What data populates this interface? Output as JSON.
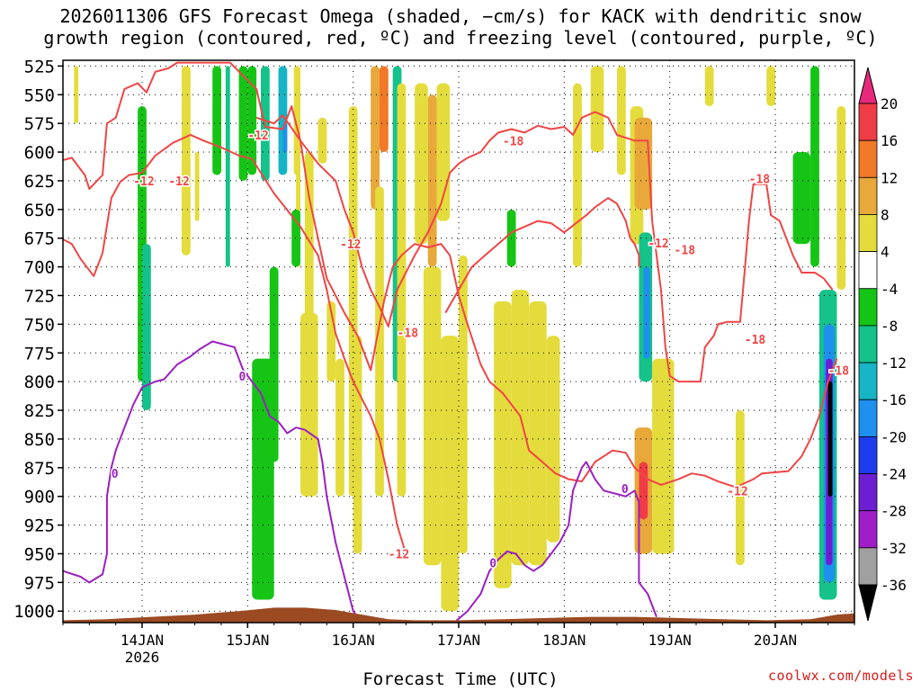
{
  "title": {
    "line1": "2026011306 GFS Forecast Omega (shaded, −cm/s) for KACK with dendritic snow",
    "line2": "growth region (contoured, red, ºC) and freezing level (contoured, purple, ºC)"
  },
  "credit": "coolwx.com/models",
  "colors": {
    "snow_growth_contour": "#f04545",
    "freezing_contour": "#9b1fc1",
    "ground": "#9b4a22"
  },
  "chart_data": {
    "type": "heatmap",
    "xlabel": "Forecast Time (UTC)",
    "ylabel": "",
    "x_ticks": [
      {
        "label": "14JAN",
        "sublabel": "2026",
        "hour": 18
      },
      {
        "label": "15JAN",
        "sublabel": "",
        "hour": 42
      },
      {
        "label": "16JAN",
        "sublabel": "",
        "hour": 66
      },
      {
        "label": "17JAN",
        "sublabel": "",
        "hour": 90
      },
      {
        "label": "18JAN",
        "sublabel": "",
        "hour": 114
      },
      {
        "label": "19JAN",
        "sublabel": "",
        "hour": 138
      },
      {
        "label": "20JAN",
        "sublabel": "",
        "hour": 162
      }
    ],
    "xlim_hours": [
      0,
      180
    ],
    "y_levels_hpa": [
      525,
      550,
      575,
      600,
      625,
      650,
      675,
      700,
      725,
      750,
      775,
      800,
      825,
      850,
      875,
      900,
      925,
      950,
      975,
      1000
    ],
    "ylim_hpa": [
      520,
      1010
    ],
    "grid": true,
    "colorbar": {
      "labels": [
        "20",
        "16",
        "12",
        "8",
        "4",
        "-4",
        "-8",
        "-12",
        "-16",
        "-20",
        "-24",
        "-28",
        "-32",
        "-36"
      ],
      "bins": [
        {
          "range": "16 to 20",
          "color": "#f03c46"
        },
        {
          "range": "12 to 16",
          "color": "#f07a28"
        },
        {
          "range": "8 to 12",
          "color": "#e8a83a"
        },
        {
          "range": "4 to 8",
          "color": "#e4dc3c"
        },
        {
          "range": "-4 to 4",
          "color": "#ffffff"
        },
        {
          "range": "-8 to -4",
          "color": "#16c416"
        },
        {
          "range": "-12 to -8",
          "color": "#14c28a"
        },
        {
          "range": "-16 to -12",
          "color": "#16b4c4"
        },
        {
          "range": "-20 to -16",
          "color": "#1e90ee"
        },
        {
          "range": "-24 to -20",
          "color": "#1e3cee"
        },
        {
          "range": "-28 to -24",
          "color": "#6e1ed2"
        },
        {
          "range": "-32 to -28",
          "color": "#a01ec8"
        },
        {
          "range": "-36 to -32",
          "color": "#a0a0a0"
        }
      ],
      "top_arrow_color": "#e8287a",
      "bottom_arrow_color": "#000000"
    },
    "contour_labels": {
      "red": [
        "-12",
        "-12",
        "-12",
        "-12",
        "-12",
        "-12",
        "-18",
        "-18",
        "-18",
        "-18",
        "-18",
        "-18",
        "-12"
      ],
      "purple": [
        "0",
        "0",
        "0",
        "0"
      ]
    },
    "shaded_regions": [
      {
        "h": [
          2.5,
          3.5
        ],
        "p": [
          525,
          575
        ],
        "value": 6
      },
      {
        "h": [
          17,
          19
        ],
        "p": [
          560,
          800
        ],
        "value": -6
      },
      {
        "h": [
          18,
          20
        ],
        "p": [
          680,
          825
        ],
        "value": -10
      },
      {
        "h": [
          27,
          29
        ],
        "p": [
          525,
          690
        ],
        "value": 6
      },
      {
        "h": [
          30,
          31
        ],
        "p": [
          600,
          660
        ],
        "value": 6
      },
      {
        "h": [
          34,
          36
        ],
        "p": [
          525,
          620
        ],
        "value": -6
      },
      {
        "h": [
          37,
          38
        ],
        "p": [
          525,
          700
        ],
        "value": -8
      },
      {
        "h": [
          40,
          42
        ],
        "p": [
          525,
          625
        ],
        "value": -6
      },
      {
        "h": [
          42,
          44
        ],
        "p": [
          525,
          620
        ],
        "value": -6
      },
      {
        "h": [
          45,
          47
        ],
        "p": [
          525,
          625
        ],
        "value": -10
      },
      {
        "h": [
          49,
          51
        ],
        "p": [
          525,
          620
        ],
        "value": -12
      },
      {
        "h": [
          50,
          51
        ],
        "p": [
          575,
          600
        ],
        "value": -18
      },
      {
        "h": [
          52.5,
          54
        ],
        "p": [
          525,
          620
        ],
        "value": 6
      },
      {
        "h": [
          53,
          54
        ],
        "p": [
          600,
          700
        ],
        "value": 6
      },
      {
        "h": [
          55,
          57
        ],
        "p": [
          600,
          775
        ],
        "value": 6
      },
      {
        "h": [
          58,
          60
        ],
        "p": [
          570,
          610
        ],
        "value": 6
      },
      {
        "h": [
          43,
          48
        ],
        "p": [
          780,
          990
        ],
        "value": -6
      },
      {
        "h": [
          47,
          49
        ],
        "p": [
          700,
          870
        ],
        "value": -6
      },
      {
        "h": [
          52,
          54
        ],
        "p": [
          650,
          700
        ],
        "value": -6
      },
      {
        "h": [
          54,
          58
        ],
        "p": [
          740,
          900
        ],
        "value": 6
      },
      {
        "h": [
          60,
          62
        ],
        "p": [
          730,
          800
        ],
        "value": 6
      },
      {
        "h": [
          62,
          64
        ],
        "p": [
          780,
          900
        ],
        "value": 6
      },
      {
        "h": [
          65,
          67
        ],
        "p": [
          560,
          900
        ],
        "value": 6
      },
      {
        "h": [
          66,
          68
        ],
        "p": [
          760,
          950
        ],
        "value": 6
      },
      {
        "h": [
          70,
          72
        ],
        "p": [
          525,
          650
        ],
        "value": 10
      },
      {
        "h": [
          71,
          73
        ],
        "p": [
          630,
          900
        ],
        "value": 6
      },
      {
        "h": [
          72,
          74
        ],
        "p": [
          525,
          600
        ],
        "value": 14
      },
      {
        "h": [
          75,
          77
        ],
        "p": [
          525,
          800
        ],
        "value": -10
      },
      {
        "h": [
          76,
          78
        ],
        "p": [
          540,
          900
        ],
        "value": 6
      },
      {
        "h": [
          80,
          83
        ],
        "p": [
          540,
          680
        ],
        "value": 6
      },
      {
        "h": [
          83,
          85
        ],
        "p": [
          550,
          700
        ],
        "value": 10
      },
      {
        "h": [
          85,
          88
        ],
        "p": [
          540,
          660
        ],
        "value": 6
      },
      {
        "h": [
          82,
          86
        ],
        "p": [
          700,
          960
        ],
        "value": 6
      },
      {
        "h": [
          86,
          90
        ],
        "p": [
          760,
          1000
        ],
        "value": 6
      },
      {
        "h": [
          90,
          92
        ],
        "p": [
          690,
          950
        ],
        "value": 6
      },
      {
        "h": [
          98,
          102
        ],
        "p": [
          730,
          980
        ],
        "value": 6
      },
      {
        "h": [
          102,
          106
        ],
        "p": [
          720,
          960
        ],
        "value": 6
      },
      {
        "h": [
          106,
          110
        ],
        "p": [
          730,
          960
        ],
        "value": 6
      },
      {
        "h": [
          110,
          113
        ],
        "p": [
          760,
          940
        ],
        "value": 6
      },
      {
        "h": [
          101,
          103
        ],
        "p": [
          650,
          700
        ],
        "value": -6
      },
      {
        "h": [
          116,
          118
        ],
        "p": [
          540,
          700
        ],
        "value": 6
      },
      {
        "h": [
          120,
          123
        ],
        "p": [
          525,
          600
        ],
        "value": 6
      },
      {
        "h": [
          126,
          128
        ],
        "p": [
          525,
          620
        ],
        "value": 6
      },
      {
        "h": [
          129,
          132
        ],
        "p": [
          560,
          680
        ],
        "value": 6
      },
      {
        "h": [
          130,
          134
        ],
        "p": [
          570,
          650
        ],
        "value": 12
      },
      {
        "h": [
          131,
          134
        ],
        "p": [
          670,
          800
        ],
        "value": -10
      },
      {
        "h": [
          132,
          133.5
        ],
        "p": [
          700,
          780
        ],
        "value": -16
      },
      {
        "h": [
          130,
          134
        ],
        "p": [
          840,
          950
        ],
        "value": 12
      },
      {
        "h": [
          131,
          133
        ],
        "p": [
          870,
          920
        ],
        "value": 18
      },
      {
        "h": [
          134,
          139
        ],
        "p": [
          780,
          950
        ],
        "value": 6
      },
      {
        "h": [
          146,
          148
        ],
        "p": [
          525,
          560
        ],
        "value": 6
      },
      {
        "h": [
          153,
          155
        ],
        "p": [
          825,
          960
        ],
        "value": 6
      },
      {
        "h": [
          160,
          162
        ],
        "p": [
          525,
          560
        ],
        "value": 6
      },
      {
        "h": [
          166,
          170
        ],
        "p": [
          600,
          680
        ],
        "value": -6
      },
      {
        "h": [
          170,
          172
        ],
        "p": [
          525,
          700
        ],
        "value": -6
      },
      {
        "h": [
          172,
          176
        ],
        "p": [
          720,
          990
        ],
        "value": -10
      },
      {
        "h": [
          173,
          175.5
        ],
        "p": [
          750,
          975
        ],
        "value": -18
      },
      {
        "h": [
          173.5,
          175
        ],
        "p": [
          780,
          960
        ],
        "value": -26
      },
      {
        "h": [
          174,
          175
        ],
        "p": [
          800,
          900
        ],
        "value": -40
      },
      {
        "h": [
          176,
          178
        ],
        "p": [
          560,
          720
        ],
        "value": 6
      }
    ]
  }
}
